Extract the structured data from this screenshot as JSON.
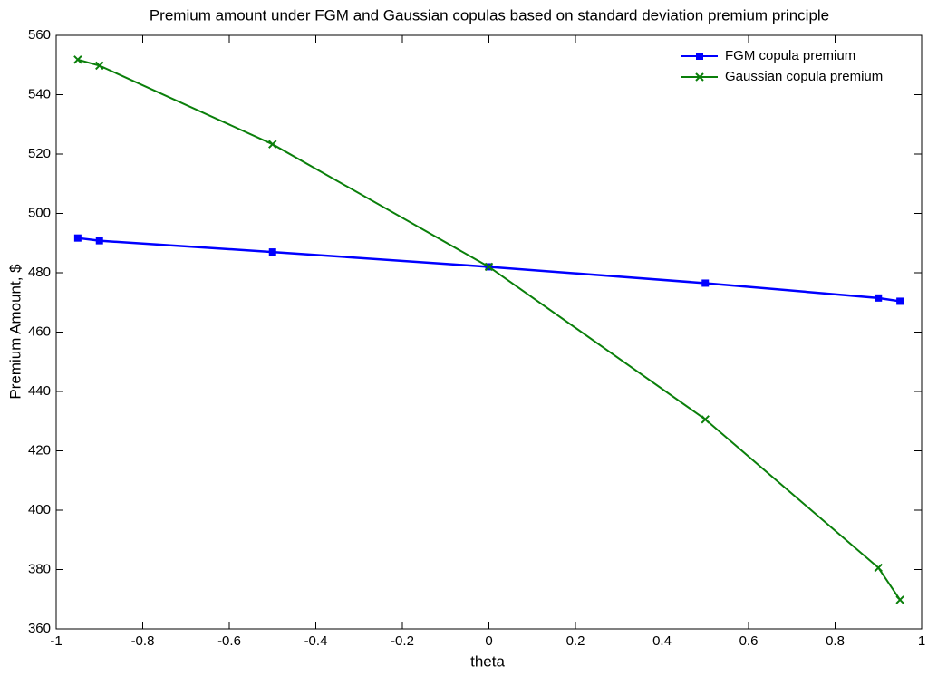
{
  "chart_data": {
    "type": "line",
    "title": "Premium amount under FGM and Gaussian copulas based on standard deviation premium principle",
    "x_label": "theta",
    "y_label": "Premium Amount, $",
    "x": [
      -0.95,
      -0.9,
      -0.5,
      0,
      0.5,
      0.9,
      0.95
    ],
    "series": [
      {
        "name": "FGM copula premium",
        "color": "#0000ff",
        "marker": "square",
        "values": [
          491.7,
          490.8,
          487,
          482,
          476.5,
          471.5,
          470.4
        ]
      },
      {
        "name": "Gaussian copula premium",
        "color": "#0a7f0a",
        "marker": "x",
        "values": [
          551.8,
          549.8,
          523.3,
          482,
          430.6,
          380.6,
          369.8
        ]
      }
    ],
    "xlim": [
      -1,
      1
    ],
    "xticks": [
      -1,
      -0.8,
      -0.6,
      -0.4,
      -0.2,
      0,
      0.2,
      0.4,
      0.6,
      0.8,
      1
    ],
    "ylim": [
      360,
      560
    ],
    "yticks": [
      360,
      380,
      400,
      420,
      440,
      460,
      480,
      500,
      520,
      540,
      560
    ],
    "grid": false,
    "legend": "northeast"
  }
}
